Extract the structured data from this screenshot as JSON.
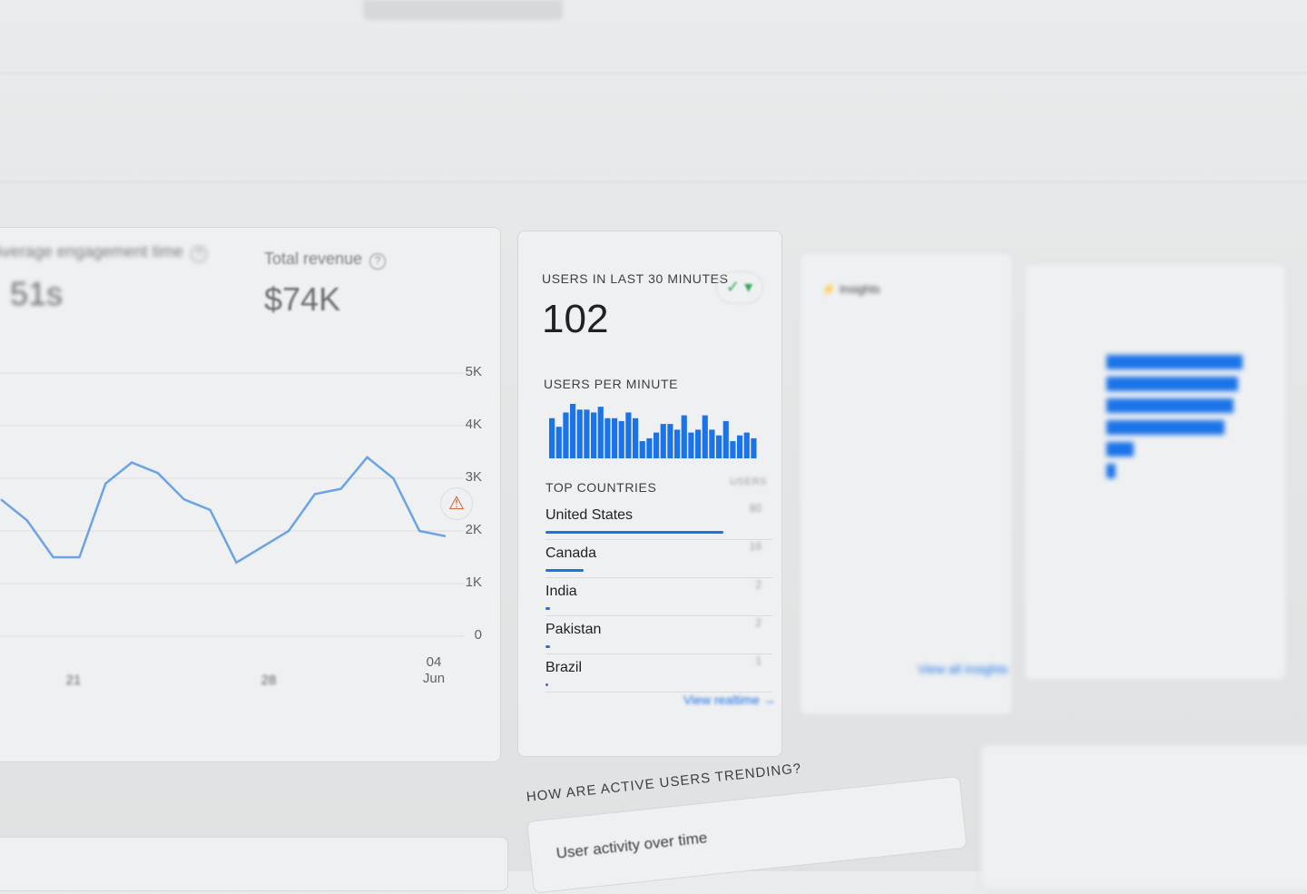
{
  "metrics": [
    {
      "label": "Average engagement time",
      "value": "51s"
    },
    {
      "label": "Total revenue",
      "value": "$74K"
    }
  ],
  "icons": {
    "help": "help-circle-icon",
    "warning": "warning-triangle-icon",
    "status": "check-circle-icon",
    "arrow": "arrow-right-icon"
  },
  "colors": {
    "accent": "#1a73e8",
    "warning": "#d2552b",
    "line": "#4a90e2"
  },
  "chart_data": [
    {
      "type": "line",
      "ylim": [
        0,
        5000
      ],
      "yticks": [
        "0",
        "1K",
        "2K",
        "3K",
        "4K",
        "5K"
      ],
      "xticks": [
        {
          "label": "21",
          "sub": ""
        },
        {
          "label": "28",
          "sub": ""
        },
        {
          "label": "04",
          "sub": "Jun"
        }
      ],
      "values": [
        2600,
        2200,
        1500,
        1500,
        2900,
        3300,
        3100,
        2600,
        2400,
        1400,
        1700,
        2000,
        2700,
        2800,
        3400,
        3000,
        2000,
        1900
      ]
    },
    {
      "type": "bar",
      "values": [
        7,
        5.5,
        8,
        9.5,
        8.5,
        8.5,
        8,
        9,
        7,
        7,
        6.5,
        8,
        7,
        3,
        3.5,
        4.5,
        6,
        6,
        5,
        7.5,
        4.5,
        5,
        7.5,
        5,
        4,
        6.5,
        3,
        4,
        4.5,
        3.5
      ]
    }
  ],
  "realtime": {
    "title": "USERS IN LAST 30 MINUTES",
    "value": "102",
    "per_minute_label": "USERS PER MINUTE",
    "countries_label": "TOP COUNTRIES",
    "users_label": "USERS",
    "countries": [
      {
        "name": "United States",
        "users": "80",
        "share": 0.8
      },
      {
        "name": "Canada",
        "users": "16",
        "share": 0.17
      },
      {
        "name": "India",
        "users": "2",
        "share": 0.02
      },
      {
        "name": "Pakistan",
        "users": "2",
        "share": 0.02
      },
      {
        "name": "Brazil",
        "users": "1",
        "share": 0.01
      }
    ],
    "link": "View realtime"
  },
  "insights": {
    "title": "Insights",
    "link": "View all insights"
  },
  "section": {
    "title": "HOW ARE ACTIVE USERS TRENDING?",
    "card_title": "User activity over time"
  }
}
